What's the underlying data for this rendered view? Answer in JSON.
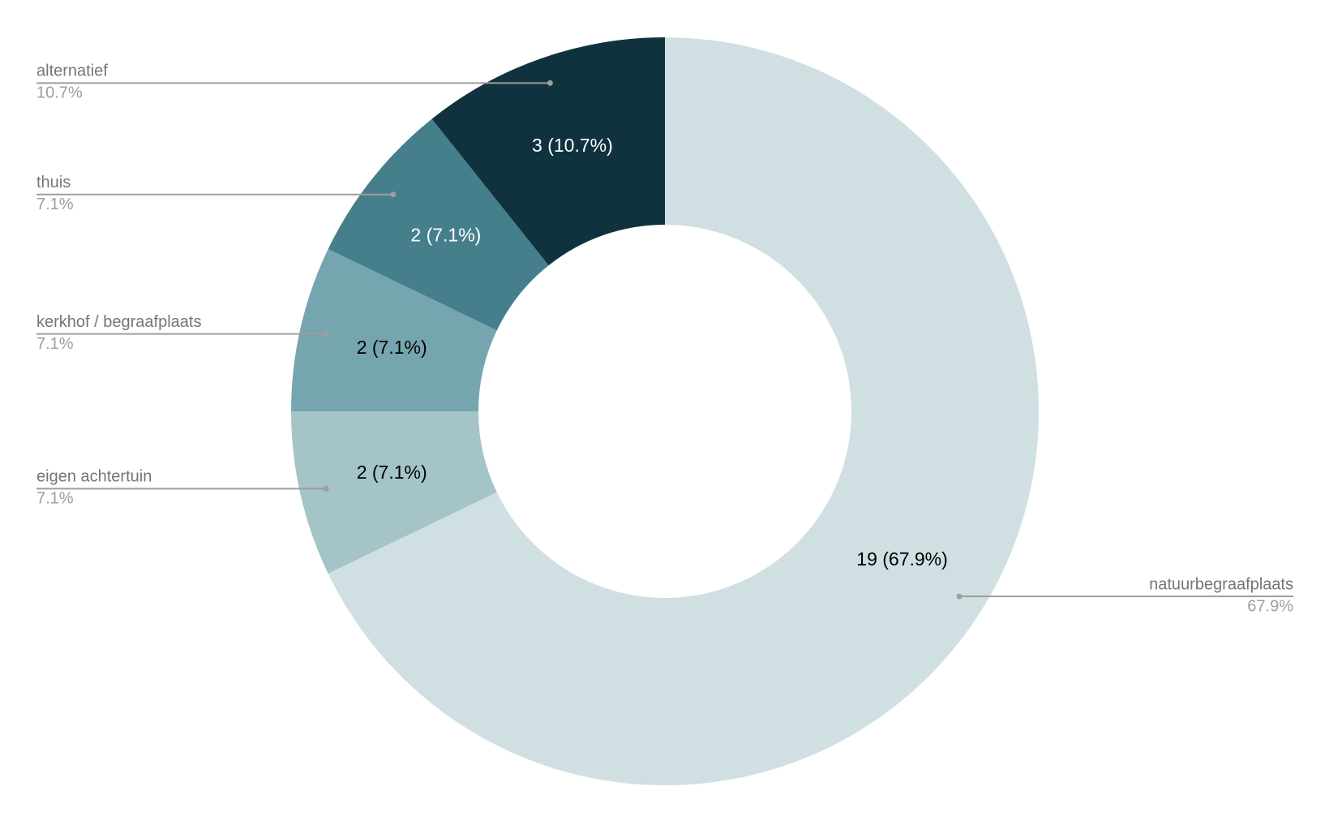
{
  "chart_data": {
    "type": "donut",
    "categories": [
      "natuurbegraafplaats",
      "eigen achtertuin",
      "kerkhof / begraafplaats",
      "thuis",
      "alternatief"
    ],
    "values": [
      19,
      2,
      2,
      2,
      3
    ],
    "value_labels": [
      "19 (67.9%)",
      "2 (7.1%)",
      "2 (7.1%)",
      "2 (7.1%)",
      "3 (10.7%)"
    ],
    "percent_labels": [
      "67.9%",
      "7.1%",
      "7.1%",
      "7.1%",
      "10.7%"
    ],
    "colors": [
      "#d0e0e2",
      "#a4c4c8",
      "#75a5ae",
      "#467f8c",
      "#0f323e"
    ]
  }
}
